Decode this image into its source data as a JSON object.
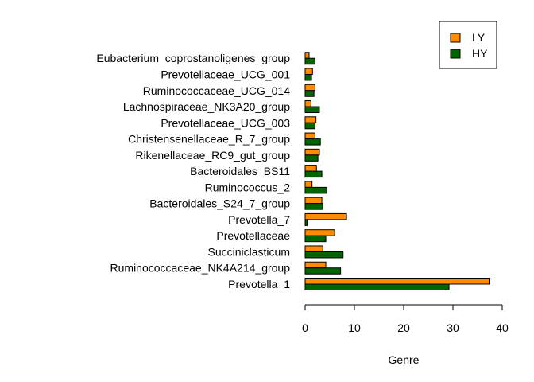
{
  "chart_data": {
    "type": "bar",
    "orientation": "horizontal",
    "categories": [
      "Prevotella_1",
      "Ruminococcaceae_NK4A214_group",
      "Succiniclasticum",
      "Prevotellaceae",
      "Prevotella_7",
      "Bacteroidales_S24_7_group",
      "Ruminococcus_2",
      "Bacteroidales_BS11",
      "Rikenellaceae_RC9_gut_group",
      "Christensenellaceae_R_7_group",
      "Prevotellaceae_UCG_003",
      "Lachnospiraceae_NK3A20_group",
      "Ruminococcaceae_UCG_014",
      "Prevotellaceae_UCG_001",
      "Eubacterium_coprostanoligenes_group"
    ],
    "series": [
      {
        "name": "LY",
        "color": "#FF8C00",
        "values": [
          37.5,
          4.2,
          3.6,
          6.0,
          8.4,
          3.4,
          1.4,
          2.3,
          2.9,
          2.0,
          2.2,
          1.2,
          2.0,
          1.5,
          0.8
        ]
      },
      {
        "name": "HY",
        "color": "#006400",
        "values": [
          29.2,
          7.2,
          7.7,
          4.2,
          0.4,
          3.6,
          4.4,
          3.4,
          2.6,
          3.1,
          2.0,
          2.9,
          1.8,
          1.3,
          2.0
        ]
      }
    ],
    "xlabel": "Genre",
    "ylabel": "",
    "xlim": [
      0,
      40
    ],
    "xticks": [
      0,
      10,
      20,
      30,
      40
    ],
    "grid": false,
    "legend_position": "top-right"
  }
}
